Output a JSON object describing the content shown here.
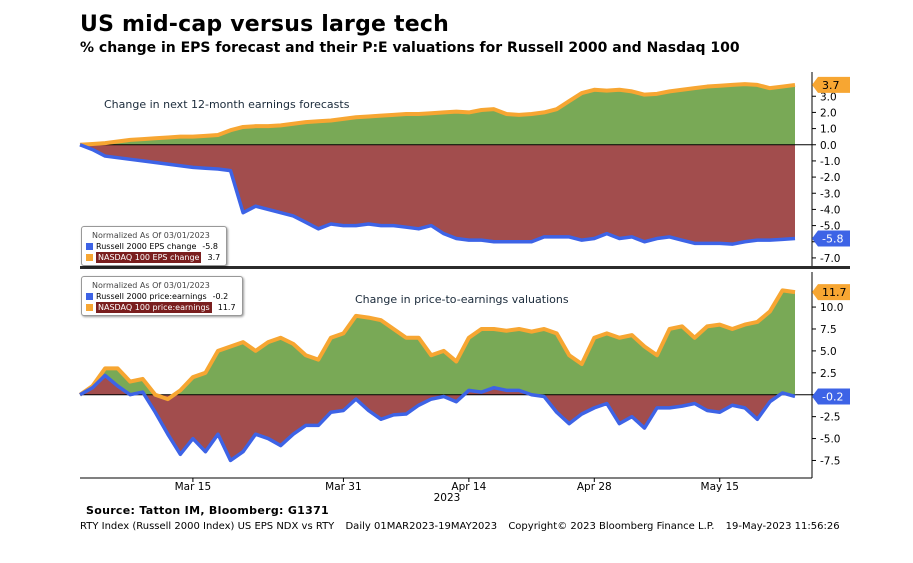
{
  "title": "US mid-cap versus large tech",
  "subtitle": "% change in EPS forecast and their P:E valuations for Russell 2000 and Nasdaq 100",
  "source": "Source: Tatton IM, Bloomberg: G1371",
  "footer": {
    "index": "RTY Index (Russell 2000 Index) US EPS NDX vs RTY",
    "range": "Daily 01MAR2023-19MAY2023",
    "copyright": "Copyright© 2023 Bloomberg Finance L.P.",
    "stamp": "19-May-2023 11:56:26"
  },
  "colors": {
    "russell": "#3d63e6",
    "nasdaq": "#f7a632",
    "positive_fill": "#79a956",
    "negative_fill": "#a24d4d"
  },
  "legend_top": {
    "header": "Normalized As Of 03/01/2023",
    "russell_label": "Russell 2000 EPS change",
    "russell_value": "-5.8",
    "nasdaq_label": "NASDAQ 100 EPS change",
    "nasdaq_value": "3.7"
  },
  "legend_bottom": {
    "header": "Normalized As Of 03/01/2023",
    "russell_label": "Russell 2000 price:earnings",
    "russell_value": "-0.2",
    "nasdaq_label": "NASDAQ 100 price:earnings",
    "nasdaq_value": "11.7"
  },
  "chart_data": [
    {
      "type": "area",
      "title": "Change in next 12-month earnings forecasts",
      "ylim": [
        -7.5,
        4.5
      ],
      "yticks": [
        -7.0,
        -6.0,
        -5.0,
        -4.0,
        -3.0,
        -2.0,
        -1.0,
        0.0,
        1.0,
        2.0,
        3.0
      ],
      "ytick_labels": [
        "-7.0",
        "-6.0",
        "-5.0",
        "-4.0",
        "-3.0",
        "-2.0",
        "-1.0",
        "0.0",
        "1.0",
        "2.0",
        "3.0"
      ],
      "last_labels": {
        "nasdaq": "3.7",
        "russell": "-5.8"
      },
      "series": [
        {
          "name": "NASDAQ 100 EPS change",
          "x": [
            0,
            1,
            2,
            3,
            4,
            5,
            6,
            7,
            8,
            9,
            10,
            11,
            12,
            13,
            14,
            15,
            16,
            17,
            18,
            19,
            20,
            21,
            22,
            23,
            24,
            25,
            26,
            27,
            28,
            29,
            30,
            31,
            32,
            33,
            34,
            35,
            36,
            37,
            38,
            39,
            40,
            41,
            42,
            43,
            44,
            45,
            46,
            47,
            48,
            49,
            50,
            51,
            52,
            53,
            54,
            55,
            56,
            57
          ],
          "values": [
            0.0,
            0.05,
            0.1,
            0.2,
            0.3,
            0.35,
            0.4,
            0.45,
            0.5,
            0.5,
            0.55,
            0.6,
            0.9,
            1.1,
            1.15,
            1.15,
            1.2,
            1.3,
            1.4,
            1.45,
            1.5,
            1.6,
            1.7,
            1.75,
            1.8,
            1.85,
            1.9,
            1.9,
            1.95,
            2.0,
            2.05,
            2.0,
            2.15,
            2.2,
            1.9,
            1.85,
            1.9,
            2.0,
            2.2,
            2.7,
            3.2,
            3.4,
            3.35,
            3.4,
            3.3,
            3.1,
            3.15,
            3.3,
            3.4,
            3.5,
            3.6,
            3.65,
            3.7,
            3.75,
            3.7,
            3.5,
            3.6,
            3.7
          ]
        },
        {
          "name": "Russell 2000 EPS change",
          "x": [
            0,
            1,
            2,
            3,
            4,
            5,
            6,
            7,
            8,
            9,
            10,
            11,
            12,
            13,
            14,
            15,
            16,
            17,
            18,
            19,
            20,
            21,
            22,
            23,
            24,
            25,
            26,
            27,
            28,
            29,
            30,
            31,
            32,
            33,
            34,
            35,
            36,
            37,
            38,
            39,
            40,
            41,
            42,
            43,
            44,
            45,
            46,
            47,
            48,
            49,
            50,
            51,
            52,
            53,
            54,
            55,
            56,
            57
          ],
          "values": [
            0.0,
            -0.3,
            -0.7,
            -0.8,
            -0.9,
            -1.0,
            -1.1,
            -1.2,
            -1.3,
            -1.4,
            -1.45,
            -1.5,
            -1.6,
            -4.2,
            -3.8,
            -4.0,
            -4.2,
            -4.4,
            -4.8,
            -5.2,
            -4.9,
            -5.0,
            -5.0,
            -4.9,
            -5.0,
            -5.0,
            -5.1,
            -5.2,
            -5.0,
            -5.5,
            -5.8,
            -5.9,
            -5.9,
            -6.0,
            -6.0,
            -6.0,
            -6.0,
            -5.7,
            -5.7,
            -5.7,
            -5.9,
            -5.8,
            -5.5,
            -5.8,
            -5.7,
            -6.0,
            -5.8,
            -5.7,
            -5.9,
            -6.1,
            -6.1,
            -6.1,
            -6.15,
            -6.0,
            -5.9,
            -5.9,
            -5.85,
            -5.8
          ]
        }
      ]
    },
    {
      "type": "area",
      "title": "Change in price-to-earnings valuations",
      "ylim": [
        -9.5,
        14.0
      ],
      "yticks": [
        -7.5,
        -5.0,
        -2.5,
        0.0,
        2.5,
        5.0,
        7.5,
        10.0
      ],
      "ytick_labels": [
        "-7.5",
        "-5.0",
        "-2.5",
        "0.0",
        "2.5",
        "5.0",
        "7.5",
        "10.0"
      ],
      "last_labels": {
        "nasdaq": "11.7",
        "russell": "-0.2"
      },
      "series": [
        {
          "name": "NASDAQ 100 price:earnings",
          "x": [
            0,
            1,
            2,
            3,
            4,
            5,
            6,
            7,
            8,
            9,
            10,
            11,
            12,
            13,
            14,
            15,
            16,
            17,
            18,
            19,
            20,
            21,
            22,
            23,
            24,
            25,
            26,
            27,
            28,
            29,
            30,
            31,
            32,
            33,
            34,
            35,
            36,
            37,
            38,
            39,
            40,
            41,
            42,
            43,
            44,
            45,
            46,
            47,
            48,
            49,
            50,
            51,
            52,
            53,
            54,
            55,
            56,
            57
          ],
          "values": [
            0.0,
            1.0,
            3.0,
            3.0,
            1.5,
            1.8,
            0.0,
            -0.5,
            0.5,
            2.0,
            2.5,
            5.0,
            5.5,
            6.0,
            5.0,
            6.0,
            6.5,
            5.8,
            4.5,
            4.0,
            6.5,
            7.0,
            9.0,
            8.8,
            8.5,
            7.5,
            6.5,
            6.5,
            4.5,
            5.0,
            3.8,
            6.5,
            7.5,
            7.5,
            7.3,
            7.5,
            7.2,
            7.5,
            7.0,
            4.5,
            3.5,
            6.5,
            7.0,
            6.5,
            6.8,
            5.5,
            4.5,
            7.5,
            7.8,
            6.5,
            7.8,
            8.0,
            7.5,
            8.0,
            8.3,
            9.5,
            11.9,
            11.7
          ]
        },
        {
          "name": "Russell 2000 price:earnings",
          "x": [
            0,
            1,
            2,
            3,
            4,
            5,
            6,
            7,
            8,
            9,
            10,
            11,
            12,
            13,
            14,
            15,
            16,
            17,
            18,
            19,
            20,
            21,
            22,
            23,
            24,
            25,
            26,
            27,
            28,
            29,
            30,
            31,
            32,
            33,
            34,
            35,
            36,
            37,
            38,
            39,
            40,
            41,
            42,
            43,
            44,
            45,
            46,
            47,
            48,
            49,
            50,
            51,
            52,
            53,
            54,
            55,
            56,
            57
          ],
          "values": [
            0.0,
            0.8,
            2.2,
            1.0,
            0.0,
            0.3,
            -2.0,
            -4.5,
            -6.8,
            -5.0,
            -6.5,
            -4.5,
            -7.5,
            -6.5,
            -4.5,
            -5.0,
            -5.8,
            -4.5,
            -3.5,
            -3.5,
            -2.0,
            -1.8,
            -0.5,
            -1.8,
            -2.8,
            -2.3,
            -2.2,
            -1.2,
            -0.5,
            -0.2,
            -0.8,
            0.5,
            0.3,
            0.8,
            0.5,
            0.5,
            0.0,
            -0.2,
            -2.0,
            -3.3,
            -2.2,
            -1.5,
            -1.0,
            -3.3,
            -2.5,
            -3.8,
            -1.5,
            -1.5,
            -1.3,
            -1.0,
            -1.8,
            -2.0,
            -1.2,
            -1.5,
            -2.8,
            -0.8,
            0.2,
            -0.2
          ]
        }
      ]
    }
  ],
  "x_axis": {
    "ticks": [
      {
        "x": 9,
        "label": "Mar 15"
      },
      {
        "x": 21,
        "label": "Mar 31"
      },
      {
        "x": 31,
        "label": "Apr 14"
      },
      {
        "x": 41,
        "label": "Apr 28"
      },
      {
        "x": 51,
        "label": "May 15"
      }
    ],
    "year": "2023"
  }
}
